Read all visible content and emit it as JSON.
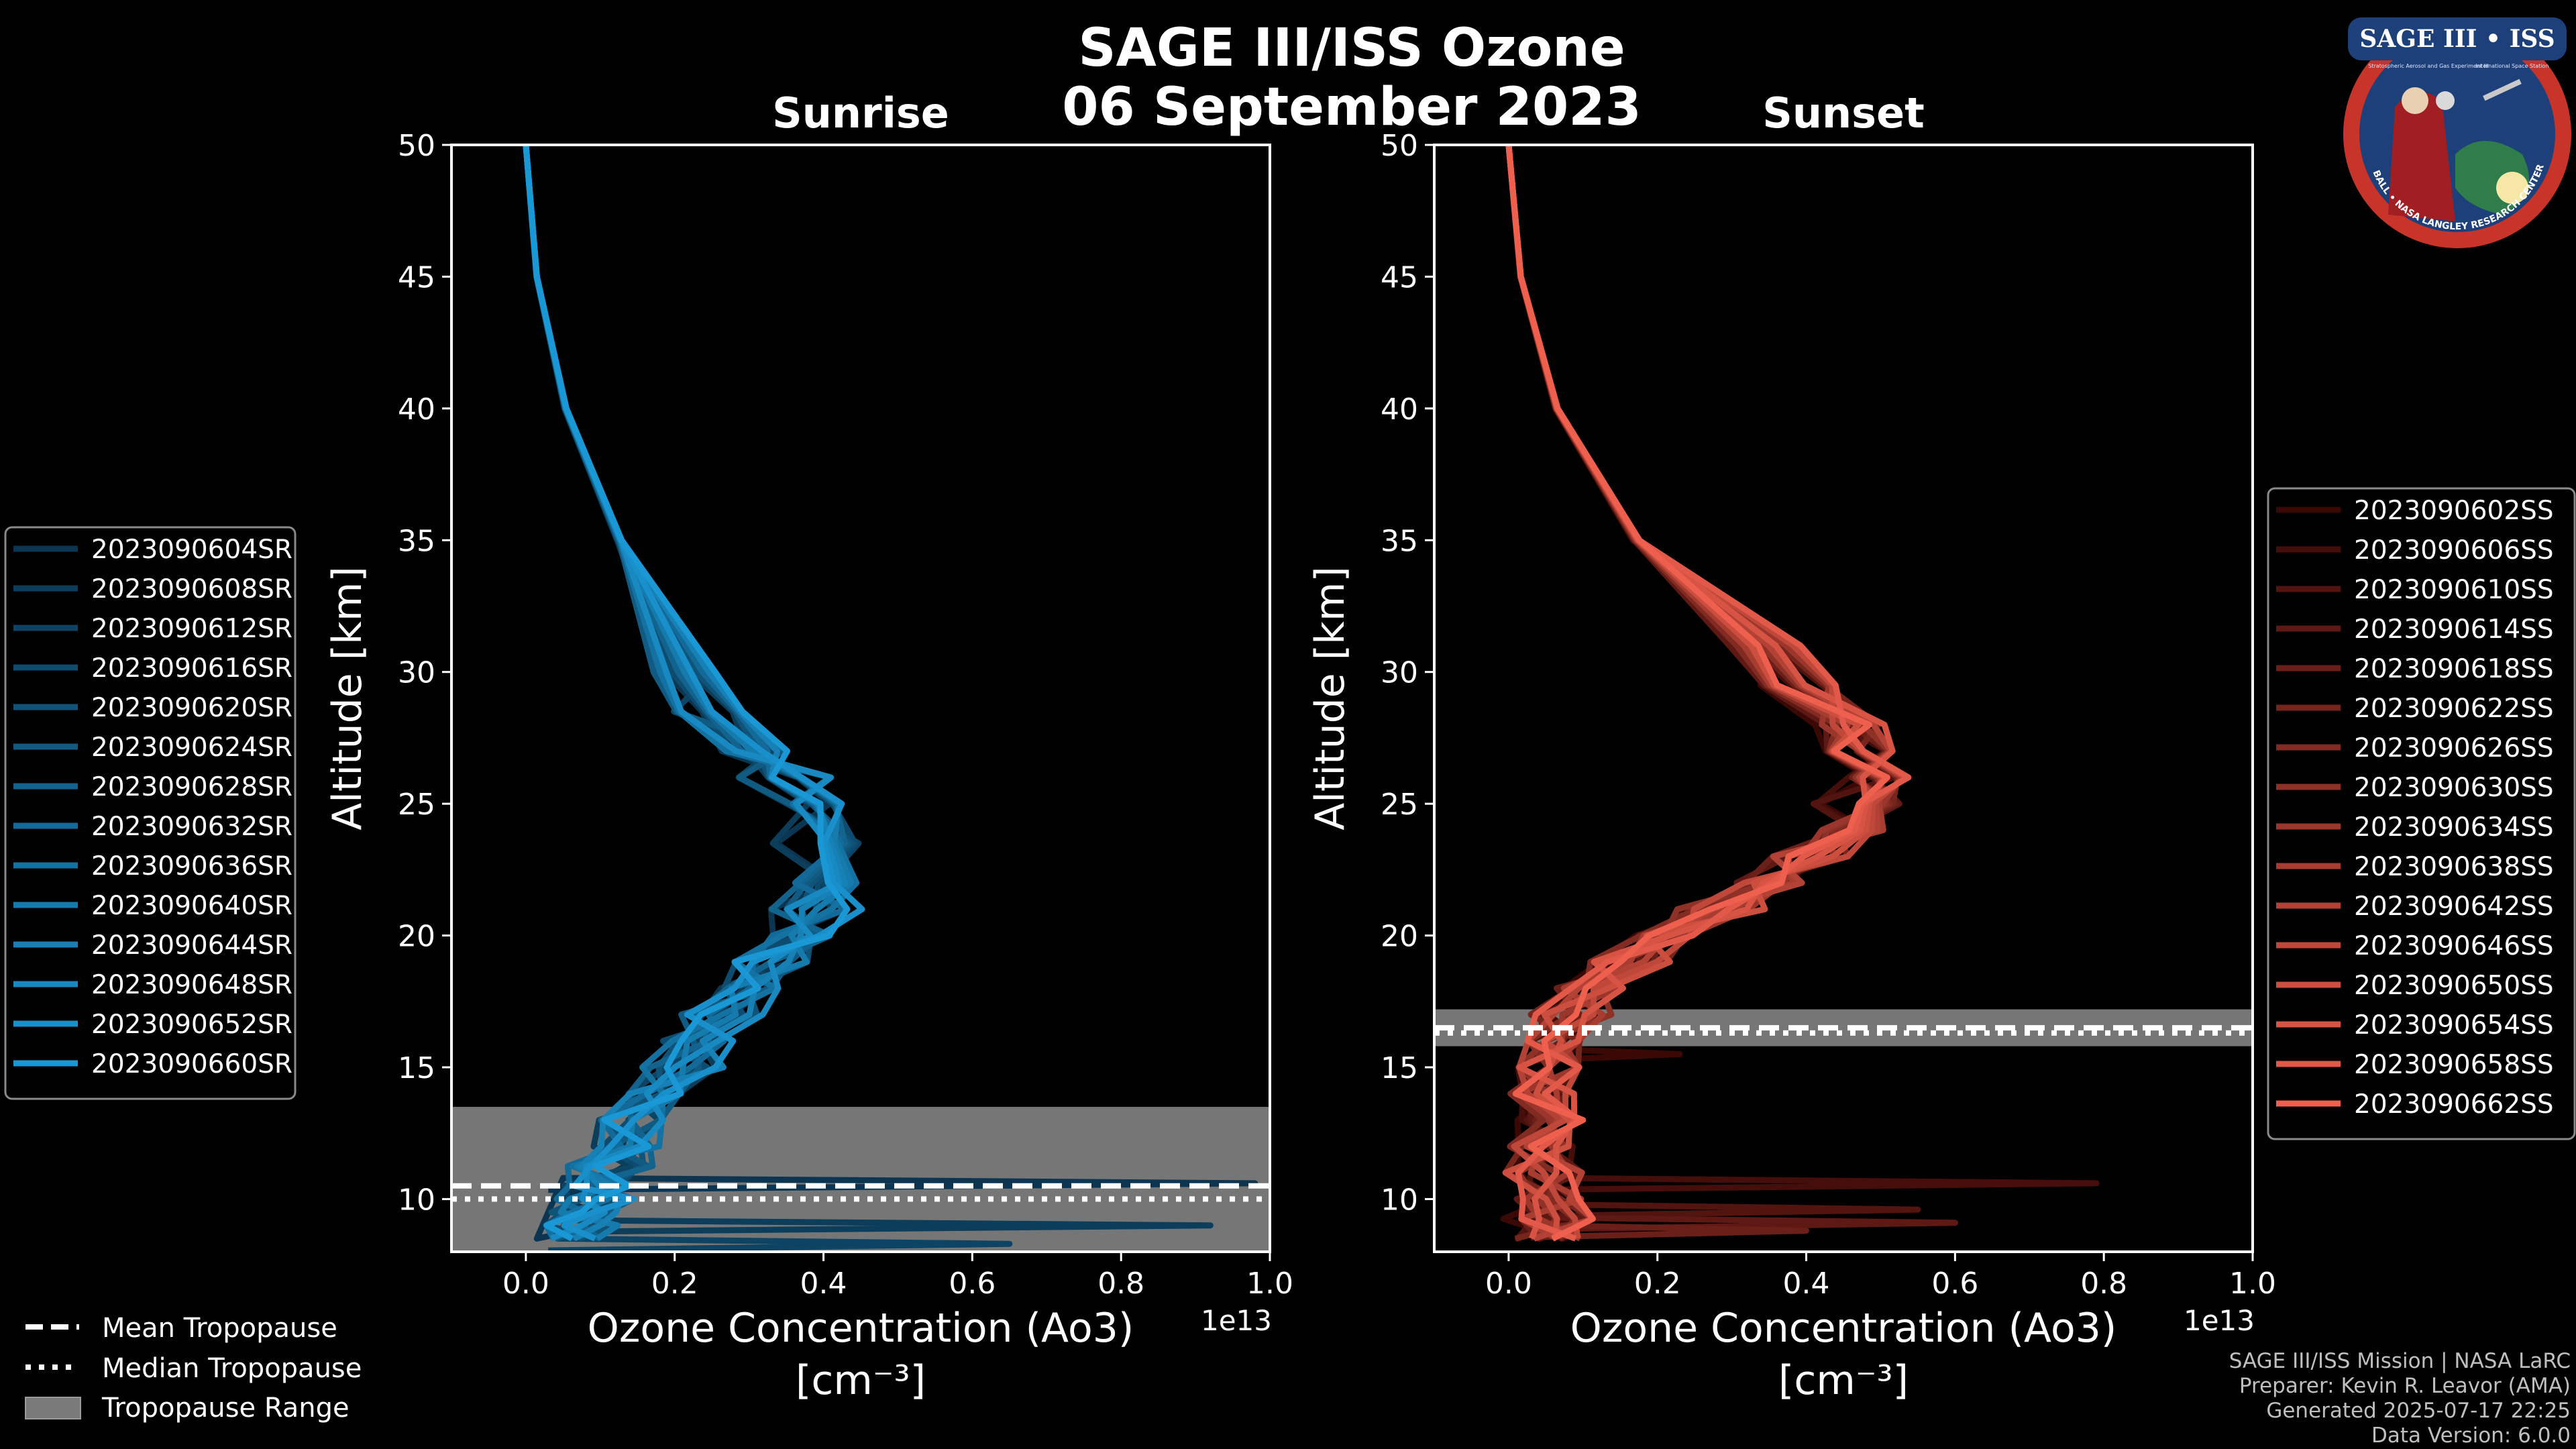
{
  "title_line1": "SAGE III/ISS Ozone",
  "title_line2": "06 September 2023",
  "logo": {
    "top_text": "SAGE III • ISS",
    "sub_left": "Stratospheric Aerosol and Gas Experiment III",
    "sub_right": "International Space Station",
    "ring_text": "BALL • NASA LANGLEY RESEARCH CENTER • TAS-I • ESA"
  },
  "footer": {
    "line1": "SAGE III/ISS Mission | NASA LaRC",
    "line2": "Preparer: Kevin R. Leavor (AMA)",
    "line3": "Generated 2025-07-17 22:25",
    "line4": "Data Version: 6.0.0"
  },
  "tropo_legend": [
    {
      "label": "Mean Tropopause",
      "style": "dashed"
    },
    {
      "label": "Median Tropopause",
      "style": "dotted"
    },
    {
      "label": "Tropopause Range",
      "style": "patch"
    }
  ],
  "chart_data": [
    {
      "type": "line",
      "title": "Sunrise",
      "xlabel": "Ozone Concentration (Ao3)",
      "xlabel_units": "[cm⁻³]",
      "ylabel": "Altitude [km]",
      "x_offset_label": "1e13",
      "xlim": [
        -0.1,
        1.0
      ],
      "ylim": [
        8,
        50
      ],
      "xticks": [
        "0.0",
        "0.2",
        "0.4",
        "0.6",
        "0.8",
        "1.0"
      ],
      "yticks": [
        "10",
        "15",
        "20",
        "25",
        "30",
        "35",
        "40",
        "45",
        "50"
      ],
      "color_dark": "#0b3550",
      "color_light": "#1a98d5",
      "tropopause": {
        "mean": 10.5,
        "median": 10.0,
        "range": [
          8.0,
          13.5
        ]
      },
      "legend_position": "left",
      "series_names": [
        "2023090604SR",
        "2023090608SR",
        "2023090612SR",
        "2023090616SR",
        "2023090620SR",
        "2023090624SR",
        "2023090628SR",
        "2023090632SR",
        "2023090636SR",
        "2023090640SR",
        "2023090644SR",
        "2023090648SR",
        "2023090652SR",
        "2023090660SR"
      ],
      "altitude": [
        50,
        45,
        40,
        35,
        30,
        27,
        25,
        22,
        20,
        18,
        16,
        14,
        12,
        10.5,
        9.5,
        8.5
      ],
      "base_profile": [
        0.0,
        0.015,
        0.055,
        0.13,
        0.22,
        0.32,
        0.4,
        0.42,
        0.38,
        0.3,
        0.24,
        0.18,
        0.14,
        0.1,
        0.08,
        0.06
      ],
      "low_altitude_spikes": [
        {
          "altitude": 10.6,
          "value": 0.98
        },
        {
          "altitude": 9.0,
          "value": 0.92
        },
        {
          "altitude": 8.3,
          "value": 0.65
        }
      ]
    },
    {
      "type": "line",
      "title": "Sunset",
      "xlabel": "Ozone Concentration (Ao3)",
      "xlabel_units": "[cm⁻³]",
      "ylabel": "Altitude [km]",
      "x_offset_label": "1e13",
      "xlim": [
        -0.1,
        1.0
      ],
      "ylim": [
        8,
        50
      ],
      "xticks": [
        "0.0",
        "0.2",
        "0.4",
        "0.6",
        "0.8",
        "1.0"
      ],
      "yticks": [
        "10",
        "15",
        "20",
        "25",
        "30",
        "35",
        "40",
        "45",
        "50"
      ],
      "color_dark": "#3a0805",
      "color_light": "#ef5f4e",
      "tropopause": {
        "mean": 16.5,
        "median": 16.3,
        "range": [
          15.8,
          17.2
        ]
      },
      "legend_position": "right",
      "series_names": [
        "2023090602SS",
        "2023090606SS",
        "2023090610SS",
        "2023090614SS",
        "2023090618SS",
        "2023090622SS",
        "2023090626SS",
        "2023090630SS",
        "2023090634SS",
        "2023090638SS",
        "2023090642SS",
        "2023090646SS",
        "2023090650SS",
        "2023090654SS",
        "2023090658SS",
        "2023090662SS"
      ],
      "altitude": [
        50,
        45,
        40,
        35,
        31,
        28,
        26,
        24,
        22,
        20,
        18,
        16,
        14,
        12,
        10,
        8.5
      ],
      "base_profile": [
        0.0,
        0.015,
        0.06,
        0.16,
        0.32,
        0.43,
        0.46,
        0.43,
        0.33,
        0.2,
        0.1,
        0.05,
        0.04,
        0.04,
        0.05,
        0.05
      ],
      "low_altitude_spikes": [
        {
          "altitude": 15.5,
          "value": 0.23
        },
        {
          "altitude": 10.6,
          "value": 0.79
        },
        {
          "altitude": 9.6,
          "value": 0.55
        },
        {
          "altitude": 9.1,
          "value": 0.6
        },
        {
          "altitude": 8.8,
          "value": 0.4
        }
      ]
    }
  ]
}
